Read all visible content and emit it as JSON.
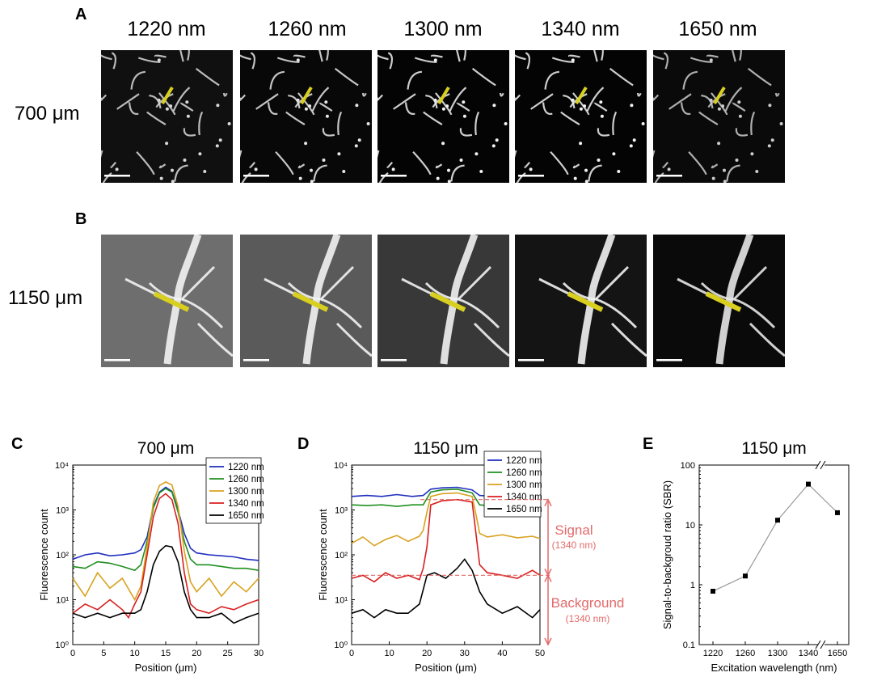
{
  "panels": {
    "A": "A",
    "B": "B",
    "C": "C",
    "D": "D",
    "E": "E"
  },
  "columns": [
    "1220 nm",
    "1260 nm",
    "1300 nm",
    "1340 nm",
    "1650 nm"
  ],
  "rows": [
    {
      "depth": "700 μm",
      "background_levels": [
        0.08,
        0.04,
        0.02,
        0.02,
        0.05
      ],
      "vessel_brightness": [
        0.85,
        0.9,
        0.95,
        0.95,
        0.8
      ]
    },
    {
      "depth": "1150 μm",
      "background_levels": [
        0.55,
        0.45,
        0.28,
        0.1,
        0.05
      ],
      "vessel_brightness": [
        0.95,
        0.95,
        0.95,
        0.95,
        0.9
      ]
    }
  ],
  "colors": {
    "line_marker": "#d8cf1f",
    "scale_bar": "#ffffff",
    "c1220": "#1f2fbf",
    "c1260": "#1f8f1f",
    "c1300": "#d8a21f",
    "c1340": "#d81f1f",
    "c1650": "#000000",
    "annotation": "#e36a6a",
    "sbr_line": "#9a9a9a"
  },
  "chart_data": [
    {
      "panel": "C",
      "type": "line",
      "title": "700 μm",
      "xlabel": "Position (μm)",
      "ylabel": "Fluorescence count",
      "xlim": [
        0,
        30
      ],
      "ylim": [
        1,
        10000
      ],
      "yscale": "log",
      "xticks": [
        "0",
        "5",
        "10",
        "15",
        "20",
        "25",
        "30"
      ],
      "yticks": [
        "10⁰",
        "10¹",
        "10²",
        "10³",
        "10⁴"
      ],
      "legend": "top-right",
      "series": [
        {
          "name": "1220 nm",
          "x": [
            0,
            2,
            4,
            6,
            8,
            10,
            11,
            12,
            13,
            14,
            15,
            16,
            17,
            18,
            19,
            20,
            22,
            24,
            26,
            28,
            30
          ],
          "y": [
            80,
            100,
            110,
            95,
            100,
            110,
            130,
            250,
            1200,
            2500,
            3200,
            2600,
            1000,
            300,
            140,
            110,
            100,
            95,
            90,
            80,
            75
          ]
        },
        {
          "name": "1260 nm",
          "x": [
            0,
            2,
            4,
            6,
            8,
            10,
            11,
            12,
            13,
            14,
            15,
            16,
            17,
            18,
            19,
            20,
            22,
            24,
            26,
            28,
            30
          ],
          "y": [
            55,
            50,
            70,
            65,
            55,
            45,
            60,
            200,
            1100,
            2400,
            3000,
            2500,
            900,
            200,
            80,
            60,
            60,
            55,
            50,
            50,
            45
          ]
        },
        {
          "name": "1300 nm",
          "x": [
            0,
            2,
            4,
            6,
            8,
            10,
            11,
            12,
            13,
            14,
            15,
            16,
            17,
            18,
            19,
            20,
            22,
            24,
            26,
            28,
            30
          ],
          "y": [
            30,
            12,
            40,
            18,
            30,
            10,
            20,
            150,
            1500,
            3500,
            4200,
            3600,
            1200,
            120,
            25,
            15,
            30,
            12,
            25,
            15,
            30
          ]
        },
        {
          "name": "1340 nm",
          "x": [
            0,
            2,
            4,
            6,
            8,
            9,
            10,
            11,
            12,
            13,
            14,
            15,
            16,
            17,
            18,
            19,
            20,
            22,
            24,
            26,
            28,
            30
          ],
          "y": [
            5,
            8,
            6,
            10,
            6,
            4,
            8,
            15,
            100,
            700,
            1800,
            2300,
            1700,
            500,
            40,
            8,
            6,
            5,
            7,
            6,
            8,
            10
          ]
        },
        {
          "name": "1650 nm",
          "x": [
            0,
            2,
            4,
            6,
            8,
            10,
            11,
            12,
            13,
            14,
            15,
            16,
            17,
            18,
            19,
            20,
            22,
            24,
            26,
            28,
            30
          ],
          "y": [
            5,
            4,
            5,
            4,
            5,
            5,
            6,
            15,
            60,
            120,
            160,
            150,
            70,
            15,
            6,
            4,
            4,
            5,
            3,
            4,
            5
          ]
        }
      ]
    },
    {
      "panel": "D",
      "type": "line",
      "title": "1150 μm",
      "xlabel": "Position (μm)",
      "ylabel": "Fluorescence count",
      "xlim": [
        0,
        50
      ],
      "ylim": [
        1,
        10000
      ],
      "yscale": "log",
      "xticks": [
        "0",
        "10",
        "20",
        "30",
        "40",
        "50"
      ],
      "yticks": [
        "10⁰",
        "10¹",
        "10²",
        "10³",
        "10⁴"
      ],
      "legend": "top-right",
      "series": [
        {
          "name": "1220 nm",
          "x": [
            0,
            4,
            8,
            12,
            16,
            19,
            21,
            24,
            28,
            32,
            34,
            38,
            42,
            46,
            50
          ],
          "y": [
            2000,
            2100,
            2000,
            2200,
            2000,
            2100,
            2900,
            3100,
            3200,
            2800,
            2100,
            2000,
            1900,
            2000,
            1900
          ]
        },
        {
          "name": "1260 nm",
          "x": [
            0,
            4,
            8,
            12,
            16,
            19,
            21,
            24,
            28,
            32,
            34,
            38,
            42,
            46,
            50
          ],
          "y": [
            1300,
            1250,
            1300,
            1200,
            1300,
            1300,
            2500,
            2800,
            2900,
            2400,
            1300,
            1200,
            1250,
            1200,
            1300
          ]
        },
        {
          "name": "1300 nm",
          "x": [
            0,
            3,
            6,
            9,
            12,
            15,
            18,
            19,
            20,
            21,
            24,
            28,
            32,
            33,
            34,
            36,
            40,
            44,
            48,
            50
          ],
          "y": [
            180,
            250,
            160,
            220,
            270,
            200,
            260,
            350,
            900,
            2000,
            2300,
            2400,
            2000,
            800,
            300,
            250,
            280,
            240,
            260,
            230
          ]
        },
        {
          "name": "1340 nm",
          "x": [
            0,
            3,
            6,
            9,
            12,
            15,
            18,
            19,
            20,
            21,
            24,
            28,
            32,
            33,
            34,
            36,
            40,
            44,
            48,
            50
          ],
          "y": [
            30,
            35,
            25,
            40,
            30,
            35,
            28,
            50,
            150,
            1300,
            1600,
            1700,
            1500,
            300,
            60,
            40,
            35,
            30,
            45,
            35
          ]
        },
        {
          "name": "1650 nm",
          "x": [
            0,
            3,
            6,
            9,
            12,
            15,
            18,
            20,
            22,
            25,
            28,
            30,
            32,
            34,
            36,
            40,
            44,
            48,
            50
          ],
          "y": [
            5,
            6,
            4,
            6,
            5,
            5,
            8,
            35,
            40,
            30,
            50,
            80,
            45,
            15,
            8,
            5,
            7,
            4,
            6
          ]
        }
      ],
      "reference_levels": {
        "signal": 1700,
        "background": 35
      },
      "annotations": [
        "Signal",
        "(1340 nm)",
        "Background",
        "(1340 nm)"
      ]
    },
    {
      "panel": "E",
      "type": "scatter",
      "title": "1150 μm",
      "xlabel": "Excitation wavelength (nm)",
      "ylabel": "Signal-to-backgroud ratio (SBR)",
      "categories": [
        "1220",
        "1260",
        "1300",
        "1340",
        "1650"
      ],
      "values": [
        0.78,
        1.4,
        12,
        48,
        16
      ],
      "ylim": [
        0.1,
        100
      ],
      "yscale": "log",
      "yticks": [
        "0.1",
        "1",
        "10",
        "100"
      ],
      "axis_break": true
    }
  ]
}
